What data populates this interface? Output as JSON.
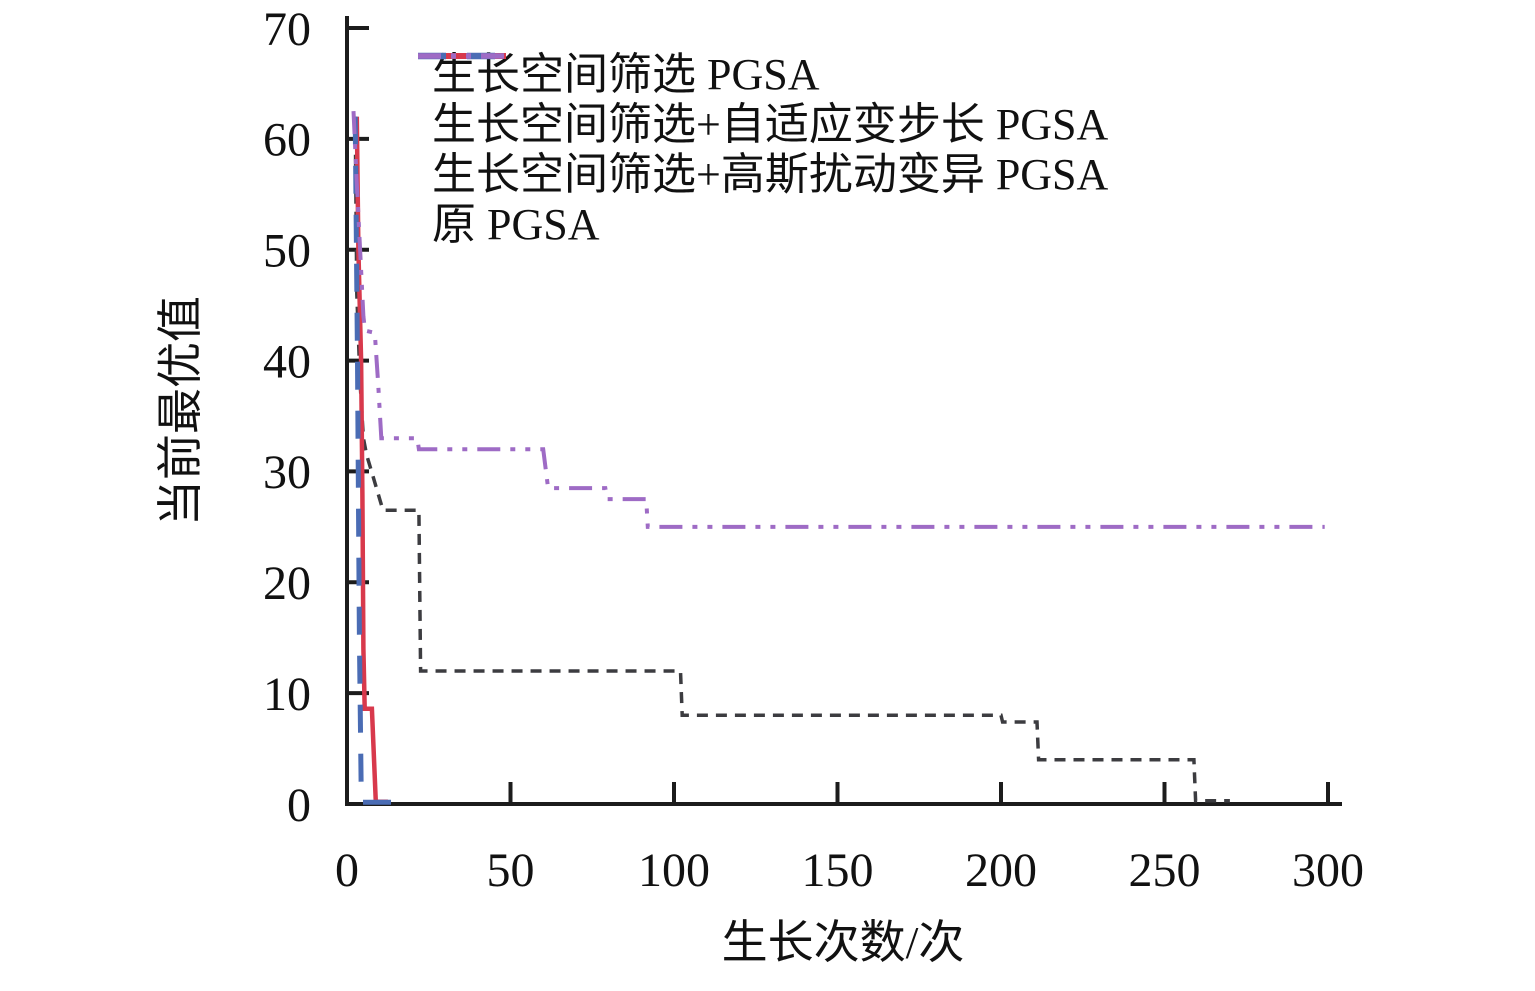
{
  "chart_data": {
    "type": "line",
    "title": "",
    "xlabel": "生长次数/次",
    "ylabel": "当前最优值",
    "xlim": [
      0,
      300
    ],
    "ylim": [
      0,
      70
    ],
    "xticks": [
      0,
      50,
      100,
      150,
      200,
      250,
      300
    ],
    "yticks": [
      0,
      10,
      20,
      30,
      40,
      50,
      60,
      70
    ],
    "grid": false,
    "legend_position": "top-left-inside",
    "axis_color": "#1c1c1c",
    "series": [
      {
        "name": "生长空间筛选 PGSA",
        "color": "#3c3c40",
        "line_style": "dashed",
        "dash": [
          11,
          8
        ],
        "width": 3.5,
        "points": [
          [
            2.5,
            62
          ],
          [
            3,
            46
          ],
          [
            4,
            38
          ],
          [
            5,
            33
          ],
          [
            6,
            31.5
          ],
          [
            8,
            29.5
          ],
          [
            10,
            27.5
          ],
          [
            11,
            26.5
          ],
          [
            22,
            26.5
          ],
          [
            22.5,
            12
          ],
          [
            102,
            12
          ],
          [
            102.5,
            8
          ],
          [
            200,
            8
          ],
          [
            200.5,
            7.4
          ],
          [
            211,
            7.4
          ],
          [
            211.5,
            4
          ],
          [
            259,
            4
          ],
          [
            259.5,
            0.3
          ],
          [
            270,
            0.3
          ]
        ]
      },
      {
        "name": "生长空间筛选+自适应变步长 PGSA",
        "color": "#d8394c",
        "line_style": "solid",
        "dash": [],
        "width": 4.5,
        "points": [
          [
            3,
            62
          ],
          [
            3.5,
            50
          ],
          [
            4.3,
            40
          ],
          [
            4.7,
            28
          ],
          [
            5,
            14
          ],
          [
            5.4,
            8.6
          ],
          [
            7.6,
            8.6
          ],
          [
            8.8,
            0.2
          ],
          [
            12.5,
            0.2
          ]
        ]
      },
      {
        "name": "生长空间筛选+高斯扰动变异 PGSA",
        "color": "#4a6cb4",
        "line_style": "dashed",
        "dash": [
          28,
          21
        ],
        "width": 5,
        "points": [
          [
            2.5,
            62
          ],
          [
            3.2,
            40
          ],
          [
            3.8,
            15
          ],
          [
            4.3,
            2
          ],
          [
            4.8,
            0.15
          ],
          [
            18,
            0.15
          ]
        ]
      },
      {
        "name": "原 PGSA",
        "color": "#9e6bc5",
        "line_style": "dash-dot-dot",
        "dash": [
          23,
          10,
          5,
          10,
          5,
          10
        ],
        "width": 4,
        "points": [
          [
            2,
            62.5
          ],
          [
            3,
            56
          ],
          [
            4,
            50
          ],
          [
            5,
            44
          ],
          [
            5.5,
            42.7
          ],
          [
            8.5,
            42.5
          ],
          [
            9.5,
            38
          ],
          [
            10.5,
            33
          ],
          [
            21.5,
            33
          ],
          [
            22,
            32
          ],
          [
            60,
            32
          ],
          [
            61.5,
            28.5
          ],
          [
            79,
            28.5
          ],
          [
            79.5,
            27.5
          ],
          [
            91.5,
            27.5
          ],
          [
            92,
            25
          ],
          [
            299,
            25
          ]
        ]
      }
    ]
  }
}
